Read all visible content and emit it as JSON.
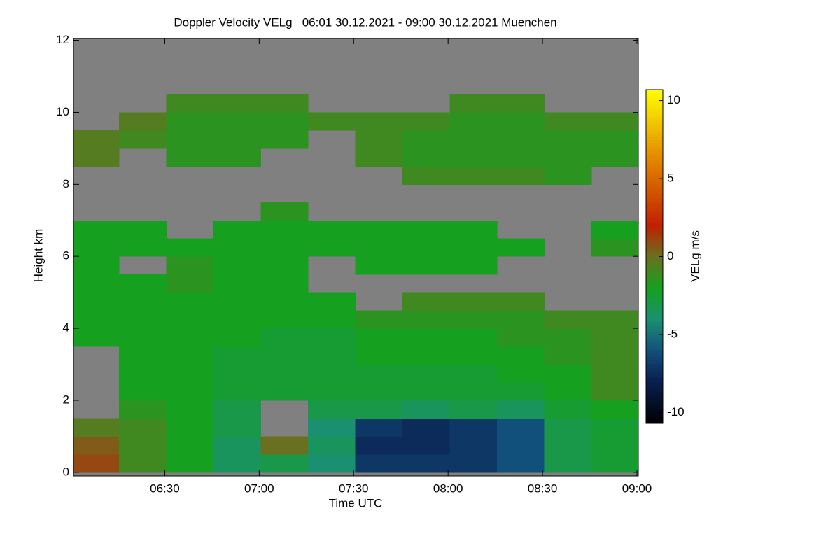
{
  "chart_data": {
    "type": "heatmap",
    "title": "Doppler Velocity VELg   06:01 30.12.2021 - 09:00 30.12.2021 Muenchen",
    "x_label": "Time UTC",
    "y_label": "Height km",
    "colorbar_label": "VELg m/s",
    "xlim": [
      "06:01",
      "09:00"
    ],
    "xticks": [
      "06:30",
      "07:00",
      "07:30",
      "08:00",
      "08:30",
      "09:00"
    ],
    "ylim": [
      -0.1,
      12.05
    ],
    "yticks": [
      0,
      2,
      4,
      6,
      8,
      10,
      12
    ],
    "zlim": [
      -10.7,
      10.7
    ],
    "zticks": [
      -10,
      -5,
      0,
      5,
      10
    ],
    "nodata_color": "#808080",
    "colorscale": [
      [
        -10.7,
        "#000000"
      ],
      [
        -8,
        "#0a1e50"
      ],
      [
        -6,
        "#12507c"
      ],
      [
        -4,
        "#1a9070"
      ],
      [
        -2,
        "#16a020"
      ],
      [
        0,
        "#6a7020"
      ],
      [
        2,
        "#c02000"
      ],
      [
        6,
        "#e08000"
      ],
      [
        10.7,
        "#ffff00"
      ]
    ],
    "x": [
      "06:08",
      "06:23",
      "06:38",
      "06:53",
      "07:08",
      "07:23",
      "07:38",
      "07:53",
      "08:08",
      "08:23",
      "08:38",
      "08:53"
    ],
    "y": [
      0.25,
      0.75,
      1.25,
      1.75,
      2.25,
      2.75,
      3.25,
      3.75,
      4.25,
      4.75,
      5.25,
      5.75,
      6.25,
      6.75,
      7.25,
      7.75,
      8.25,
      8.75,
      9.25,
      9.75,
      10.25,
      10.75,
      11.25,
      11.75
    ],
    "z": [
      [
        1,
        -1,
        -2,
        -3.5,
        -3,
        -4,
        -7,
        -7,
        -7,
        -6,
        -3,
        -2.5
      ],
      [
        0.5,
        -1,
        -2,
        -3.5,
        0,
        -3.5,
        -7.5,
        -7.5,
        -7,
        -6,
        -3,
        -2.5
      ],
      [
        -0.5,
        -1,
        -2,
        -3,
        null,
        -4,
        -7,
        -7.5,
        -7,
        -6,
        -3,
        -2.5
      ],
      [
        null,
        -1.5,
        -2,
        -3,
        null,
        -3,
        -3,
        -3.5,
        -3,
        -3.5,
        -2.5,
        -2
      ],
      [
        null,
        -2,
        -2,
        -2.5,
        -2.5,
        -2.5,
        -2.5,
        -2.5,
        -2.5,
        -2.5,
        -2,
        -1
      ],
      [
        null,
        -2,
        -2,
        -2.5,
        -2.5,
        -2.5,
        -2.5,
        -2.5,
        -2.5,
        -2,
        -2,
        -1
      ],
      [
        null,
        -2,
        -2,
        -2.5,
        -2.5,
        -2.5,
        -2,
        -2,
        -2,
        -2,
        -1.5,
        -1
      ],
      [
        -2,
        -2,
        -2,
        -2,
        -2.5,
        -2.5,
        -2,
        -2,
        -2,
        -1.5,
        -1.5,
        -1
      ],
      [
        -2,
        -2,
        -2,
        -2,
        -2,
        -2,
        -1.5,
        -1.5,
        -1.5,
        -1.5,
        -1,
        -1
      ],
      [
        -2,
        -2,
        -2,
        -2,
        -2,
        -2,
        null,
        -1,
        -1,
        -1,
        null,
        null
      ],
      [
        -2,
        -2,
        -1.5,
        -2,
        -2,
        null,
        null,
        null,
        null,
        null,
        null,
        null
      ],
      [
        -2,
        null,
        -1.5,
        -2,
        -2,
        null,
        -2,
        -2,
        -2,
        null,
        null,
        null
      ],
      [
        -2,
        -2,
        -2,
        -2,
        -2,
        -2,
        -2,
        -2,
        -2,
        -2,
        null,
        -1.5
      ],
      [
        -2,
        -2,
        null,
        -2,
        -2,
        -2,
        -2,
        -2,
        -2,
        null,
        null,
        -2
      ],
      [
        null,
        null,
        null,
        null,
        -1.5,
        null,
        null,
        null,
        null,
        null,
        null,
        null
      ],
      [
        null,
        null,
        null,
        null,
        null,
        null,
        null,
        null,
        null,
        null,
        null,
        null
      ],
      [
        null,
        null,
        null,
        null,
        null,
        null,
        null,
        -1,
        -1,
        -1,
        -1.5,
        null
      ],
      [
        -0.5,
        null,
        -1.5,
        -1.5,
        null,
        null,
        -1,
        -1.5,
        -1.5,
        -1.5,
        -1.5,
        -1.5
      ],
      [
        -0.5,
        -1,
        -1.5,
        -1.5,
        -1.5,
        null,
        -1,
        -1.5,
        -1.5,
        -1.5,
        -1.5,
        -1.5
      ],
      [
        null,
        -0.5,
        -1.5,
        -1.5,
        -1.5,
        -1,
        -1,
        -1,
        -1.5,
        -1.5,
        -1,
        -1
      ],
      [
        null,
        null,
        -1,
        -1,
        -1,
        null,
        null,
        null,
        -1,
        -1,
        null,
        null
      ],
      [
        null,
        null,
        null,
        null,
        null,
        null,
        null,
        null,
        null,
        null,
        null,
        null
      ],
      [
        null,
        null,
        null,
        null,
        null,
        null,
        null,
        null,
        null,
        null,
        null,
        null
      ],
      [
        null,
        null,
        null,
        null,
        null,
        null,
        null,
        null,
        null,
        null,
        null,
        null
      ]
    ]
  }
}
